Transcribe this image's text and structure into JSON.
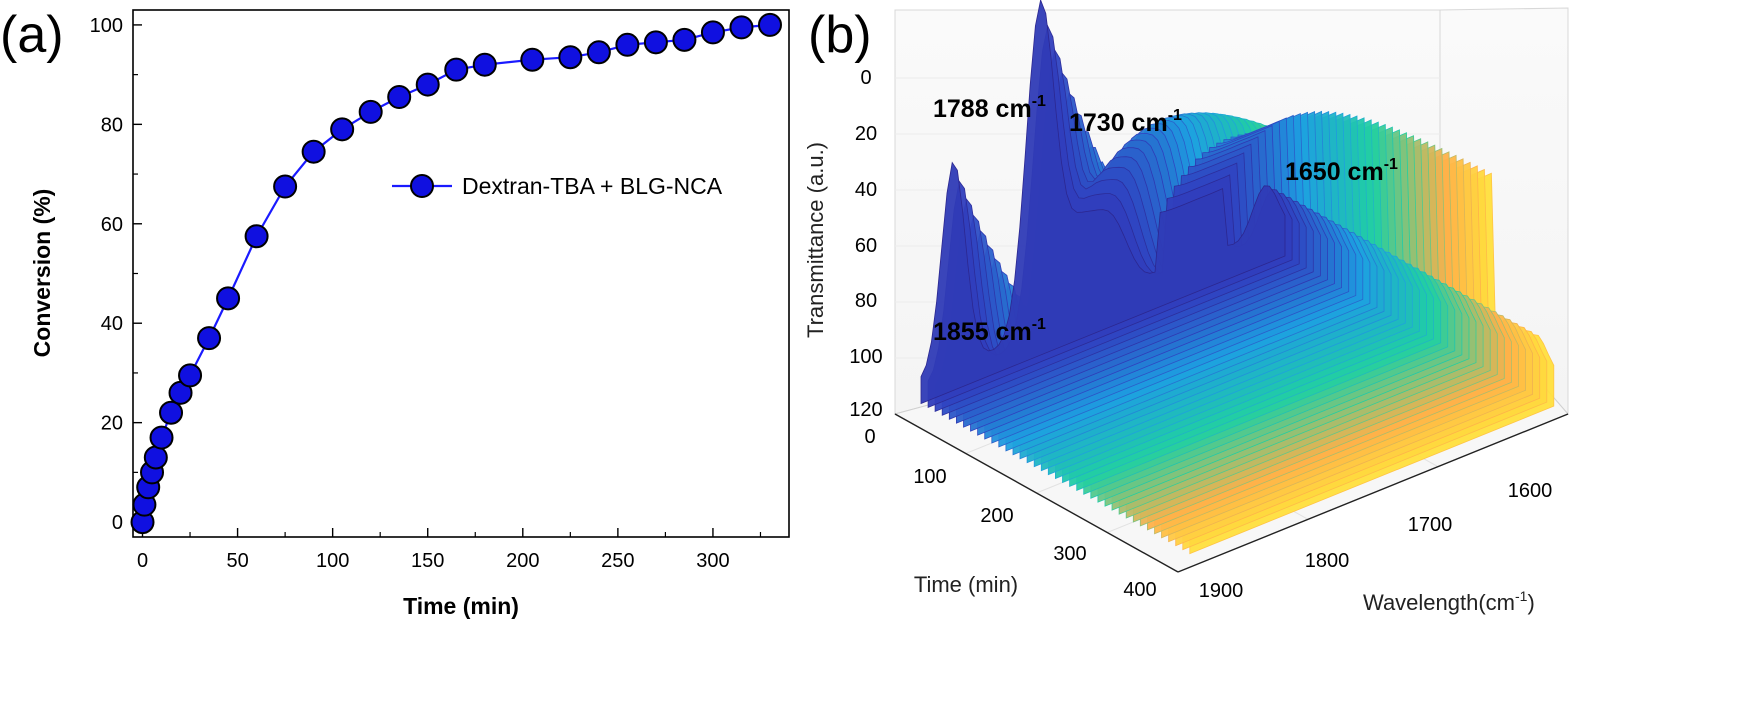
{
  "panel_a": {
    "label": "(a)",
    "legend": "Dextran-TBA + BLG-NCA",
    "accent": "#1a1aff",
    "marker_color": "#1010e0"
  },
  "panel_b": {
    "label": "(b)",
    "peaks": [
      {
        "label": "1788 cm",
        "sup": "-1"
      },
      {
        "label": "1730 cm",
        "sup": "-1"
      },
      {
        "label": "1650 cm",
        "sup": "-1"
      },
      {
        "label": "1855 cm",
        "sup": "-1"
      }
    ],
    "zlabel": "Transmittance (a.u.)",
    "time_label": "Time (min)",
    "wl_label": "Wavelength(cm",
    "wl_sup": "-1",
    "wl_close": ")",
    "z_ticks": [
      "0",
      "20",
      "40",
      "60",
      "80",
      "100",
      "120"
    ],
    "time_ticks": [
      "0",
      "100",
      "200",
      "300",
      "400"
    ],
    "wl_ticks": [
      "1900",
      "1800",
      "1700",
      "1600"
    ],
    "colormap": [
      "#ffff33",
      "#ffb04a",
      "#22d0a0",
      "#1ea0e0",
      "#3040c0",
      "#2a1f80"
    ]
  },
  "chart_data": [
    {
      "type": "line",
      "title": "",
      "xlabel": "Time (min)",
      "ylabel": "Conversion (%)",
      "xlim": [
        -5,
        340
      ],
      "ylim": [
        -3,
        103
      ],
      "x_ticks": [
        0,
        50,
        100,
        150,
        200,
        250,
        300
      ],
      "y_ticks": [
        0,
        20,
        40,
        60,
        80,
        100
      ],
      "grid": false,
      "legend_position": "center-right",
      "series": [
        {
          "name": "Dextran-TBA + BLG-NCA",
          "marker": "circle",
          "color": "#1010e0",
          "x": [
            0,
            1,
            3,
            5,
            7,
            10,
            15,
            20,
            25,
            35,
            45,
            60,
            75,
            90,
            105,
            120,
            135,
            150,
            165,
            180,
            205,
            225,
            240,
            255,
            270,
            285,
            300,
            315,
            330
          ],
          "y": [
            0,
            3.5,
            7,
            10,
            13,
            17,
            22,
            26,
            29.5,
            37,
            45,
            57.5,
            67.5,
            74.5,
            79,
            82.5,
            85.5,
            88,
            91,
            92,
            93,
            93.5,
            94.5,
            96,
            96.5,
            97,
            98.5,
            99.5,
            100
          ]
        }
      ]
    },
    {
      "type": "surface3d",
      "title": "",
      "xlabel": "Time (min)",
      "ylabel": "Wavelength(cm-1)",
      "zlabel": "Transmittance (a.u.)",
      "time_range": [
        0,
        400
      ],
      "wavelength_range": [
        1900,
        1600
      ],
      "z_range": [
        0,
        120
      ],
      "peak_annotations": [
        "1788 cm-1",
        "1730 cm-1",
        "1650 cm-1",
        "1855 cm-1"
      ]
    }
  ]
}
